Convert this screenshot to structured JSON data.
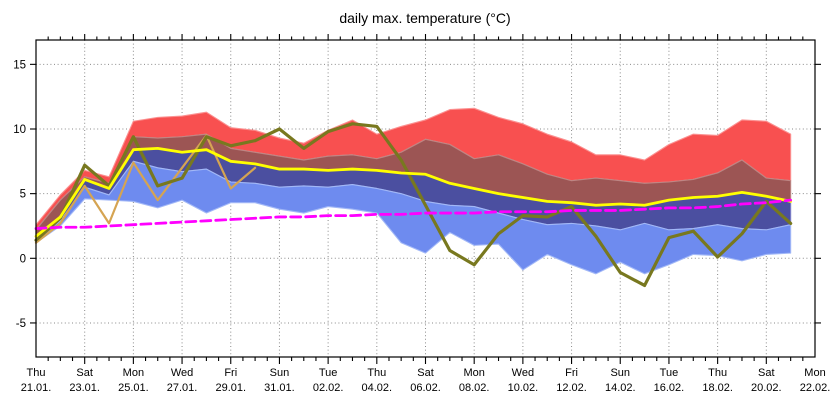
{
  "title": "daily max. temperature (°C)",
  "y_axis": {
    "tick_labels": [
      "15",
      "10",
      "5",
      "0",
      "-5"
    ],
    "tick_values": [
      15,
      10,
      5,
      0,
      -5
    ]
  },
  "x_axis": {
    "tick_labels": [
      {
        "weekday": "Thu",
        "date": "21.01."
      },
      {
        "weekday": "Sat",
        "date": "23.01."
      },
      {
        "weekday": "Mon",
        "date": "25.01."
      },
      {
        "weekday": "Wed",
        "date": "27.01."
      },
      {
        "weekday": "Fri",
        "date": "29.01."
      },
      {
        "weekday": "Sun",
        "date": "31.01."
      },
      {
        "weekday": "Tue",
        "date": "02.02."
      },
      {
        "weekday": "Thu",
        "date": "04.02."
      },
      {
        "weekday": "Sat",
        "date": "06.02."
      },
      {
        "weekday": "Mon",
        "date": "08.02."
      },
      {
        "weekday": "Wed",
        "date": "10.02."
      },
      {
        "weekday": "Fri",
        "date": "12.02."
      },
      {
        "weekday": "Sun",
        "date": "14.02."
      },
      {
        "weekday": "Tue",
        "date": "16.02."
      },
      {
        "weekday": "Thu",
        "date": "18.02."
      },
      {
        "weekday": "Sat",
        "date": "20.02."
      },
      {
        "weekday": "Mon",
        "date": "22.02."
      }
    ]
  },
  "chart_data": {
    "type": "area",
    "subtype": "ensemble-fan-with-lines",
    "title": "daily max. temperature (°C)",
    "ylabel": "",
    "xlabel": "",
    "unit": "°C",
    "ylim": [
      -7.6,
      16.9
    ],
    "yticks": [
      15,
      10,
      5,
      0,
      -5
    ],
    "grid": "dotted gray; horizontal every 5°C, vertical every 2 days",
    "x_dates": [
      "21.01.",
      "22.01.",
      "23.01.",
      "24.01.",
      "25.01.",
      "26.01.",
      "27.01.",
      "28.01.",
      "29.01.",
      "30.01.",
      "31.01.",
      "01.02.",
      "02.02.",
      "03.02.",
      "04.02.",
      "05.02.",
      "06.02.",
      "07.02.",
      "08.02.",
      "09.02.",
      "10.02.",
      "11.02.",
      "12.02.",
      "13.02.",
      "14.02.",
      "15.02.",
      "16.02.",
      "17.02.",
      "18.02.",
      "19.02.",
      "20.02.",
      "21.02."
    ],
    "boundaries": {
      "max": [
        2.6,
        4.9,
        6.8,
        6.3,
        10.6,
        10.9,
        11.0,
        11.3,
        10.1,
        9.9,
        9.3,
        8.9,
        9.9,
        10.7,
        9.6,
        10.2,
        10.7,
        11.5,
        11.6,
        10.9,
        10.4,
        9.6,
        9.0,
        8.0,
        8.0,
        7.6,
        8.8,
        9.6,
        9.5,
        10.7,
        10.6,
        9.6
      ],
      "p75": [
        2.2,
        4.5,
        6.3,
        5.8,
        9.4,
        9.3,
        9.4,
        9.6,
        8.5,
        8.2,
        7.9,
        7.6,
        7.9,
        8.0,
        7.7,
        8.2,
        9.2,
        8.8,
        7.7,
        8.0,
        7.3,
        6.5,
        6.0,
        6.2,
        6.0,
        5.8,
        5.9,
        6.1,
        6.6,
        7.6,
        6.2,
        6.0
      ],
      "median": [
        1.7,
        3.2,
        6.1,
        5.4,
        8.4,
        8.5,
        8.2,
        8.4,
        7.5,
        7.3,
        6.9,
        6.9,
        6.8,
        6.9,
        6.8,
        6.6,
        6.5,
        5.8,
        5.4,
        5.0,
        4.7,
        4.4,
        4.3,
        4.1,
        4.2,
        4.1,
        4.5,
        4.7,
        4.8,
        5.1,
        4.8,
        4.4
      ],
      "p25": [
        1.4,
        2.9,
        5.5,
        4.9,
        7.5,
        7.0,
        6.7,
        6.9,
        5.9,
        5.8,
        5.5,
        5.6,
        5.5,
        5.7,
        5.4,
        5.0,
        4.4,
        4.1,
        4.0,
        3.5,
        3.0,
        2.6,
        2.7,
        2.5,
        2.2,
        2.7,
        2.2,
        2.3,
        2.6,
        2.3,
        2.2,
        2.6
      ],
      "min": [
        1.2,
        2.5,
        4.6,
        4.5,
        4.4,
        3.9,
        4.5,
        3.5,
        4.3,
        4.3,
        3.8,
        3.5,
        4.0,
        3.8,
        3.5,
        1.2,
        0.4,
        2.0,
        1.0,
        1.1,
        -0.9,
        0.3,
        -0.5,
        -1.2,
        -0.3,
        -1.2,
        -0.5,
        0.3,
        0.2,
        -0.2,
        0.3,
        0.4
      ]
    },
    "bands": [
      {
        "name": "upper-quartile-to-max",
        "upper": "max",
        "lower": "p75",
        "color": "#f85050",
        "edge_color": "#fb9090"
      },
      {
        "name": "median-to-upper-quartile",
        "upper": "p75",
        "lower": "median",
        "color": "#9c5554",
        "edge_color": "#bd8583"
      },
      {
        "name": "lower-quartile-to-median",
        "upper": "median",
        "lower": "p25",
        "color": "#4b4fa0",
        "edge_color": "#7d80c8"
      },
      {
        "name": "min-to-lower-quartile",
        "upper": "p25",
        "lower": "min",
        "color": "#6e8bef",
        "edge_color": "#a2b8f7"
      }
    ],
    "lines": [
      {
        "name": "secondary-run",
        "color": "#d5a452",
        "width": 2.2,
        "dash": null,
        "start_day": 0,
        "values": [
          1.2,
          2.7,
          5.6,
          2.7,
          7.4,
          4.5,
          7.0,
          9.5,
          5.4,
          7.0
        ]
      },
      {
        "name": "control-run",
        "color": "#78781f",
        "width": 3.2,
        "dash": null,
        "start_day": 0,
        "values": [
          1.4,
          3.1,
          7.2,
          5.6,
          9.4,
          5.6,
          6.2,
          9.4,
          8.7,
          9.1,
          10.0,
          8.5,
          9.8,
          10.4,
          10.2,
          7.6,
          4.1,
          0.6,
          -0.5,
          1.9,
          3.3,
          3.2,
          4.0,
          1.7,
          -1.1,
          -2.1,
          1.6,
          2.1,
          0.1,
          1.9,
          4.4,
          2.7
        ]
      },
      {
        "name": "ensemble-median",
        "color": "#ffff00",
        "width": 2.8,
        "dash": null,
        "start_day": 0,
        "from_boundary": "median"
      },
      {
        "name": "climate-mean",
        "color": "#ff00ff",
        "width": 2.8,
        "dash": "10 5",
        "start_day": 0,
        "values": [
          2.3,
          2.4,
          2.4,
          2.5,
          2.6,
          2.7,
          2.8,
          2.9,
          3.0,
          3.1,
          3.2,
          3.2,
          3.3,
          3.3,
          3.4,
          3.4,
          3.5,
          3.5,
          3.5,
          3.6,
          3.6,
          3.6,
          3.7,
          3.7,
          3.7,
          3.8,
          3.9,
          3.9,
          4.0,
          4.2,
          4.3,
          4.5
        ]
      }
    ]
  },
  "colors": {
    "background": "#ffffff",
    "frame": "#000000",
    "grid": "#8a8a8a",
    "band_red": "#f85050",
    "band_brick": "#9c5554",
    "band_navy": "#4b4fa0",
    "band_blue": "#6e8bef",
    "line_yellow": "#ffff00",
    "line_olive": "#78781f",
    "line_tan": "#d5a452",
    "line_magenta": "#ff00ff"
  }
}
